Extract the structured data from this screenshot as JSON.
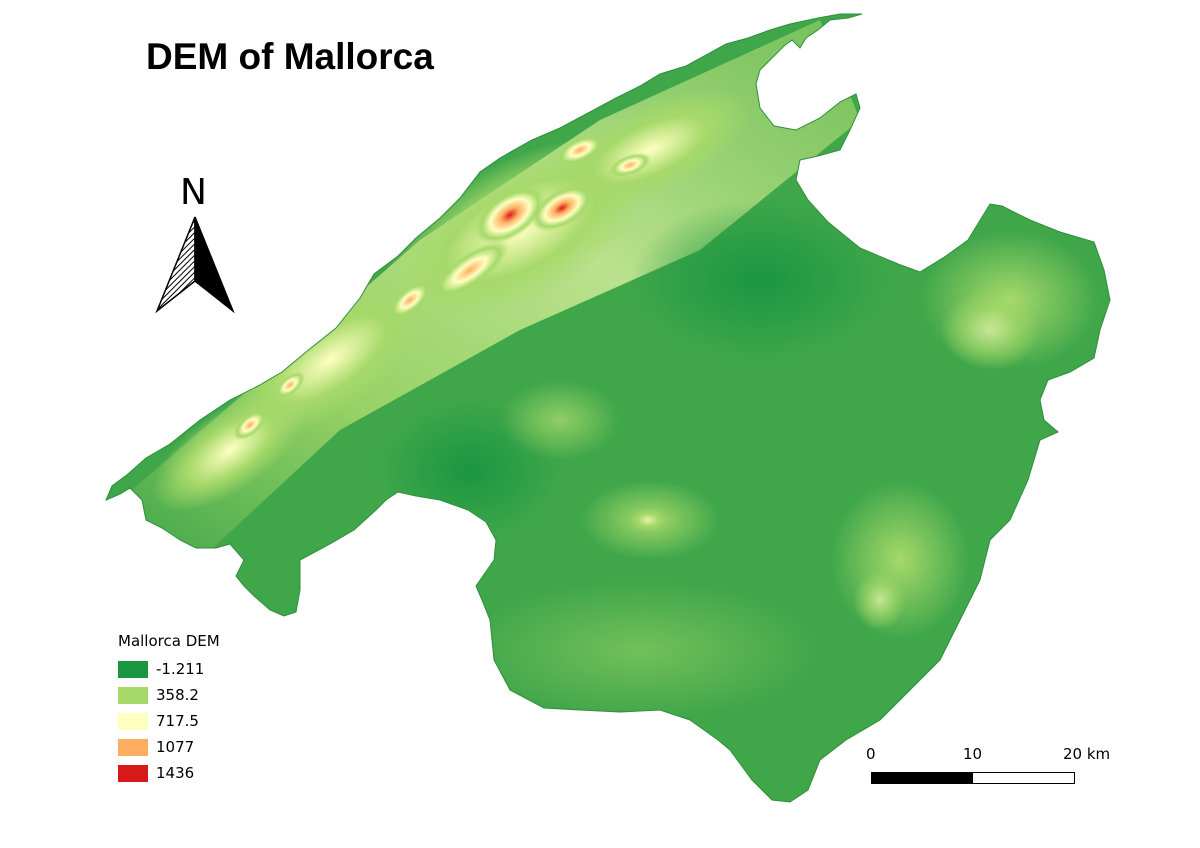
{
  "map": {
    "title": "DEM of Mallorca",
    "north_label": "N",
    "north_arrow_icon": "north-arrow-icon",
    "colors": {
      "low": "#1a9641",
      "mid_low": "#a6d96a",
      "mid": "#ffffc0",
      "mid_high": "#fdae61",
      "high": "#d7191c",
      "background": "#ffffff"
    }
  },
  "legend": {
    "title": "Mallorca DEM",
    "items": [
      {
        "label": "-1.211",
        "color": "#1a9641"
      },
      {
        "label": "358.2",
        "color": "#a6d96a"
      },
      {
        "label": "717.5",
        "color": "#ffffc0"
      },
      {
        "label": "1077",
        "color": "#fdae61"
      },
      {
        "label": "1436",
        "color": "#d7191c"
      }
    ]
  },
  "scale_bar": {
    "labels": [
      "0",
      "10",
      "20 km"
    ],
    "segment_colors": [
      "#000000",
      "#ffffff"
    ]
  }
}
